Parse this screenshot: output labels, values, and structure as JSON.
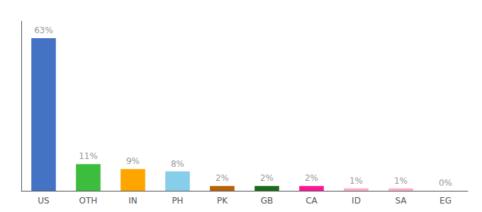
{
  "chart_data": {
    "type": "bar",
    "categories": [
      "US",
      "OTH",
      "IN",
      "PH",
      "PK",
      "GB",
      "CA",
      "ID",
      "SA",
      "EG"
    ],
    "values": [
      63,
      11,
      9,
      8,
      2,
      2,
      2,
      1,
      1,
      0
    ],
    "value_labels": [
      "63%",
      "11%",
      "9%",
      "8%",
      "2%",
      "2%",
      "2%",
      "1%",
      "1%",
      "0%"
    ],
    "colors": [
      "#4472C4",
      "#3DBD3D",
      "#FFA500",
      "#87CEEB",
      "#B8630A",
      "#1A6B1A",
      "#FF1493",
      "#FFB0C8",
      "#FFB0C8",
      "#FFFFFF"
    ],
    "ylim": [
      0,
      70
    ],
    "grid": false,
    "data_labels": true,
    "tick_labels": "x"
  }
}
